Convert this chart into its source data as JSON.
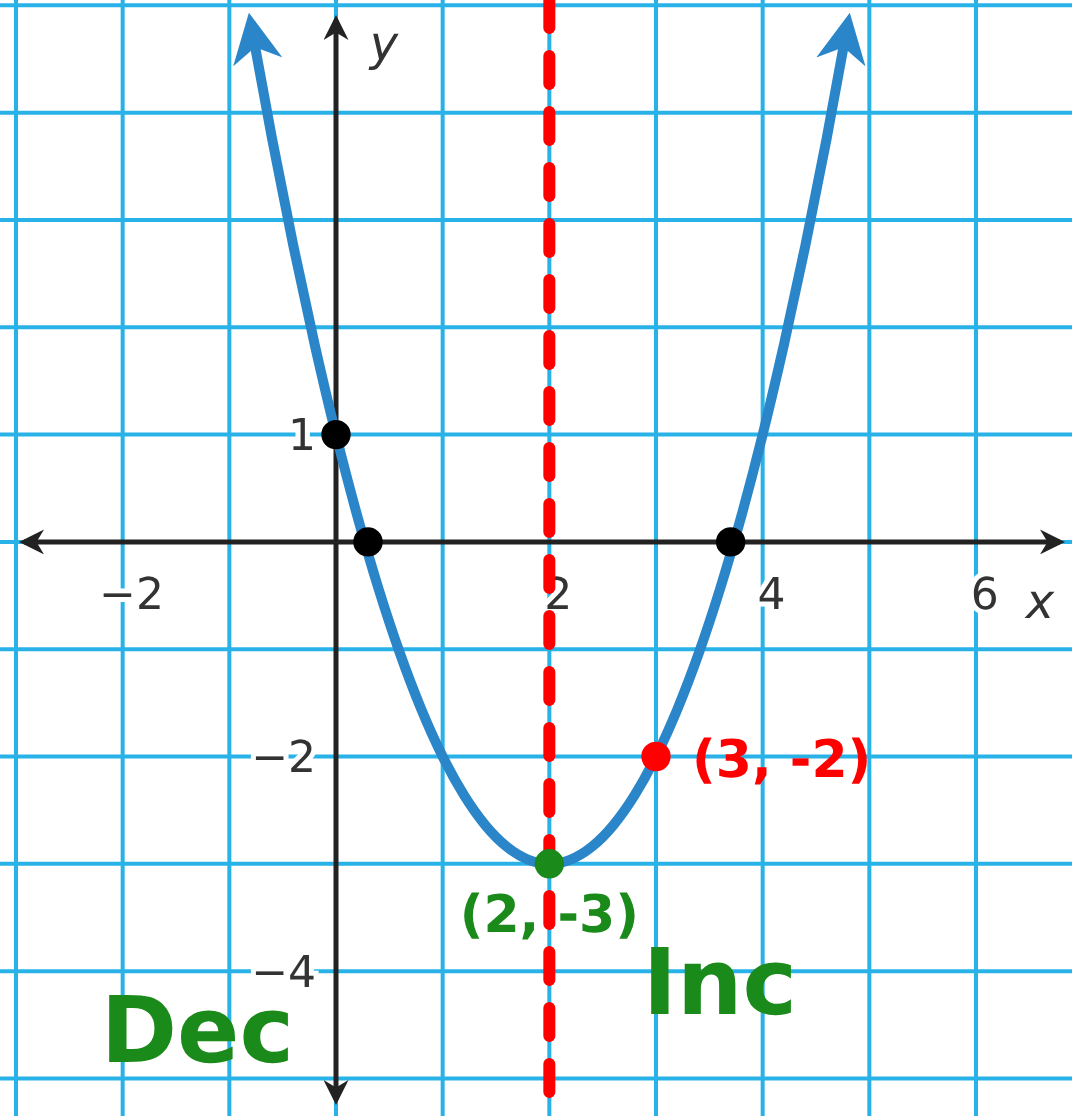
{
  "chart_data": {
    "type": "line",
    "xlabel": "x",
    "ylabel": "y",
    "xlim": [
      -3.15,
      6.9
    ],
    "ylim": [
      -5.35,
      5.05
    ],
    "xticks": [
      {
        "value": -3,
        "label": null
      },
      -2,
      {
        "value": -1,
        "label": null
      },
      {
        "value": 0,
        "label": null
      },
      {
        "value": 1,
        "label": null
      },
      2,
      {
        "value": 3,
        "label": null
      },
      4,
      {
        "value": 5,
        "label": null
      },
      6
    ],
    "yticks": [
      {
        "value": -5,
        "label": null
      },
      -4,
      {
        "value": -3,
        "label": null
      },
      -2,
      {
        "value": -1,
        "label": null
      },
      {
        "value": 0,
        "label": null
      },
      1,
      {
        "value": 2,
        "label": null
      },
      {
        "value": 3,
        "label": null
      },
      {
        "value": 4,
        "label": null
      },
      {
        "value": 5,
        "label": null
      }
    ],
    "grid": true,
    "series": [
      {
        "color": "#2a86c8",
        "marker": "none",
        "line_style": "solid",
        "x": [
          -0.8,
          -0.6,
          -0.4,
          -0.2,
          0,
          0.2,
          0.4,
          0.6,
          0.8,
          1,
          1.2,
          1.4,
          1.6,
          1.8,
          2,
          2.2,
          2.4,
          2.6,
          2.8,
          3,
          3.2,
          3.4,
          3.6,
          3.8,
          4,
          4.2,
          4.4,
          4.6,
          4.8
        ],
        "values": [
          4.84,
          3.76,
          2.76,
          1.84,
          1,
          0.24,
          -0.44,
          -1.04,
          -1.56,
          -2,
          -2.36,
          -2.64,
          -2.84,
          -2.96,
          -3,
          -2.96,
          -2.84,
          -2.64,
          -2.36,
          -2,
          -1.56,
          -1.04,
          -0.44,
          0.24,
          1,
          1.84,
          2.76,
          3.76,
          4.84
        ]
      },
      {
        "type": "scatter",
        "color": "#000000",
        "marker": "circle",
        "x": [
          0,
          0.3,
          3.7
        ],
        "values": [
          1,
          0,
          0
        ]
      },
      {
        "type": "scatter",
        "color": "#ff0000",
        "marker": "circle",
        "x": [
          3
        ],
        "values": [
          -2
        ]
      },
      {
        "type": "scatter",
        "color": "#1a8a1a",
        "marker": "circle",
        "x": [
          2
        ],
        "values": [
          -3
        ]
      }
    ],
    "ref_lines": [
      {
        "axis": "x",
        "value": 2,
        "color": "#ff0000",
        "line_style": "dashed"
      }
    ],
    "annotations": [
      {
        "text": "(3, -2)",
        "x": 3,
        "y": -2
      },
      {
        "text": "(2, -3)",
        "x": 2,
        "y": -3
      },
      "Dec",
      "Inc"
    ]
  }
}
